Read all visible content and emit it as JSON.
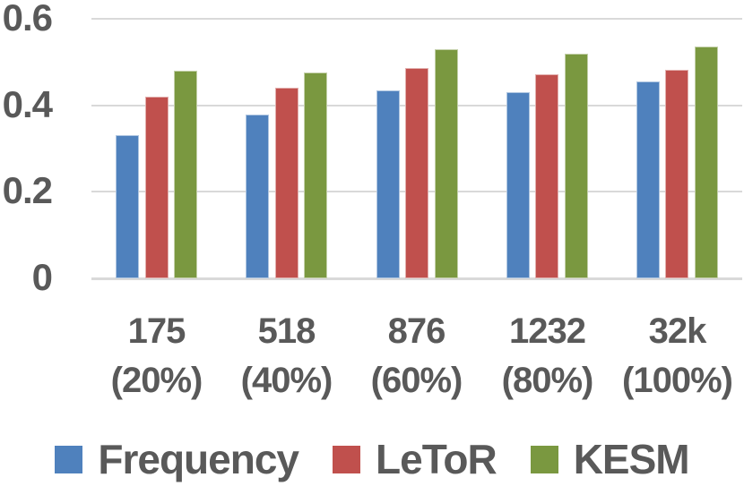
{
  "chart_data": {
    "type": "bar",
    "title": "",
    "xlabel": "",
    "ylabel": "",
    "categories": [
      {
        "line1": "175",
        "line2": "(20%)"
      },
      {
        "line1": "518",
        "line2": "(40%)"
      },
      {
        "line1": "876",
        "line2": "(60%)"
      },
      {
        "line1": "1232",
        "line2": "(80%)"
      },
      {
        "line1": "32k",
        "line2": "(100%)"
      }
    ],
    "series": [
      {
        "name": "Frequency",
        "color": "#4F81BD",
        "values": [
          0.33,
          0.378,
          0.435,
          0.43,
          0.456
        ]
      },
      {
        "name": "LeToR",
        "color": "#C0504D",
        "values": [
          0.419,
          0.44,
          0.486,
          0.472,
          0.483
        ]
      },
      {
        "name": "KESM",
        "color": "#7A9840",
        "values": [
          0.48,
          0.475,
          0.529,
          0.519,
          0.535
        ]
      }
    ],
    "ylim": [
      0,
      0.6
    ],
    "yticks": [
      {
        "value": 0,
        "label": "0"
      },
      {
        "value": 0.2,
        "label": "0.2"
      },
      {
        "value": 0.4,
        "label": "0.4"
      },
      {
        "value": 0.6,
        "label": "0.6"
      }
    ],
    "grid": true,
    "legend_position": "bottom"
  },
  "style": {
    "text_color": "#595959",
    "gridline_color": "#D9D9D9",
    "background": "#FFFFFF"
  }
}
